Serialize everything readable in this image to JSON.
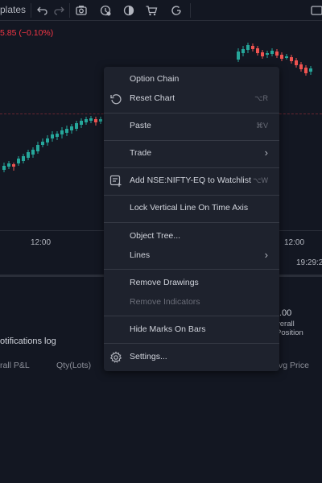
{
  "toolbar": {
    "templates_label": "plates",
    "icons": [
      "undo-icon",
      "redo-icon",
      "screenshot-icon",
      "alert-icon",
      "theme-icon",
      "cart-icon",
      "refresh-icon"
    ]
  },
  "chart": {
    "price_change": "5.85 (−0.10%)",
    "time_labels": [
      "12:00",
      "12:00"
    ],
    "clock": "19:29:2"
  },
  "bottom": {
    "value_partial": ".00",
    "overall_position_partial": "verall Position",
    "notifications_label": "otifications log",
    "columns": [
      "rall P&L",
      "Qty(Lots)",
      "vg Price"
    ]
  },
  "menu": {
    "option_chain": "Option Chain",
    "reset_chart": "Reset Chart",
    "reset_chart_shortcut": "⌥R",
    "paste": "Paste",
    "paste_shortcut": "⌘V",
    "trade": "Trade",
    "add_watchlist": "Add NSE:NIFTY-EQ to Watchlist",
    "add_watchlist_shortcut": "⌥W",
    "lock_vertical": "Lock Vertical Line On Time Axis",
    "object_tree": "Object Tree...",
    "lines": "Lines",
    "remove_drawings": "Remove Drawings",
    "remove_indicators": "Remove Indicators",
    "hide_marks": "Hide Marks On Bars",
    "settings": "Settings..."
  },
  "colors": {
    "up": "#26a69a",
    "down": "#ef5350",
    "background": "#131722",
    "menu": "#1e222d"
  }
}
